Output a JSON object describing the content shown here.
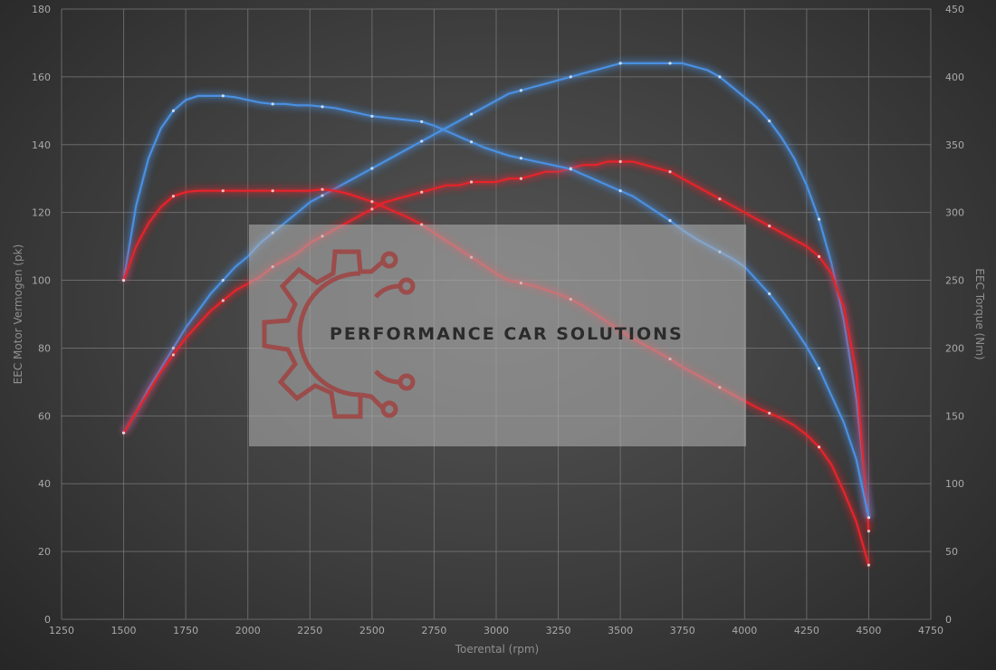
{
  "chart_data": {
    "type": "line",
    "xlabel": "Toerental (rpm)",
    "ylabel_left": "EEC Motor Vermogen (pk)",
    "ylabel_right": "EEC Torque (Nm)",
    "xlim": [
      1250,
      4750
    ],
    "ylim_left": [
      0,
      180
    ],
    "ylim_right": [
      0,
      450
    ],
    "x_ticks": [
      "1250",
      "1500",
      "1750",
      "2000",
      "2250",
      "2500",
      "2750",
      "3000",
      "3250",
      "3500",
      "3750",
      "4000",
      "4250",
      "4500",
      "4750"
    ],
    "y_left_ticks": [
      "0",
      "20",
      "40",
      "60",
      "80",
      "100",
      "120",
      "140",
      "160",
      "180"
    ],
    "y_right_ticks": [
      "0",
      "50",
      "100",
      "150",
      "200",
      "250",
      "300",
      "350",
      "400",
      "450"
    ],
    "grid": true,
    "watermark": "PERFORMANCE CAR SOLUTIONS",
    "colors": {
      "tuned": "#4a90e2",
      "stock": "#e8232a"
    },
    "series": [
      {
        "id": "power-tuned",
        "axis": "left",
        "color": "#4a90e2",
        "x": [
          1500,
          1550,
          1600,
          1650,
          1700,
          1750,
          1800,
          1850,
          1900,
          1950,
          2000,
          2050,
          2100,
          2150,
          2200,
          2250,
          2300,
          2350,
          2400,
          2450,
          2500,
          2550,
          2600,
          2650,
          2700,
          2750,
          2800,
          2850,
          2900,
          2950,
          3000,
          3050,
          3100,
          3150,
          3200,
          3250,
          3300,
          3350,
          3400,
          3450,
          3500,
          3550,
          3600,
          3650,
          3700,
          3750,
          3800,
          3850,
          3900,
          3950,
          4000,
          4050,
          4100,
          4150,
          4200,
          4250,
          4300,
          4350,
          4400,
          4450,
          4500
        ],
        "y": [
          55,
          61,
          68,
          74,
          80,
          86,
          91,
          96,
          100,
          104,
          107,
          111,
          114,
          117,
          120,
          123,
          125,
          127,
          129,
          131,
          133,
          135,
          137,
          139,
          141,
          143,
          145,
          147,
          149,
          151,
          153,
          155,
          156,
          157,
          158,
          159,
          160,
          161,
          162,
          163,
          164,
          164,
          164,
          164,
          164,
          164,
          163,
          162,
          160,
          157,
          154,
          151,
          147,
          142,
          136,
          128,
          118,
          105,
          88,
          65,
          30
        ]
      },
      {
        "id": "power-stock",
        "axis": "left",
        "color": "#e8232a",
        "x": [
          1500,
          1550,
          1600,
          1650,
          1700,
          1750,
          1800,
          1850,
          1900,
          1950,
          2000,
          2050,
          2100,
          2150,
          2200,
          2250,
          2300,
          2350,
          2400,
          2450,
          2500,
          2550,
          2600,
          2650,
          2700,
          2750,
          2800,
          2850,
          2900,
          2950,
          3000,
          3050,
          3100,
          3150,
          3200,
          3250,
          3300,
          3350,
          3400,
          3450,
          3500,
          3550,
          3600,
          3650,
          3700,
          3750,
          3800,
          3850,
          3900,
          3950,
          4000,
          4050,
          4100,
          4150,
          4200,
          4250,
          4300,
          4350,
          4400,
          4450,
          4500
        ],
        "y": [
          55,
          61,
          67,
          73,
          78,
          83,
          87,
          91,
          94,
          97,
          99,
          101,
          104,
          106,
          108,
          111,
          113,
          115,
          117,
          119,
          121,
          123,
          124,
          125,
          126,
          127,
          128,
          128,
          129,
          129,
          129,
          130,
          130,
          131,
          132,
          132,
          133,
          134,
          134,
          135,
          135,
          135,
          134,
          133,
          132,
          130,
          128,
          126,
          124,
          122,
          120,
          118,
          116,
          114,
          112,
          110,
          107,
          102,
          92,
          73,
          26
        ]
      },
      {
        "id": "torque-tuned",
        "axis": "right",
        "color": "#4a90e2",
        "x": [
          1500,
          1550,
          1600,
          1650,
          1700,
          1750,
          1800,
          1850,
          1900,
          1950,
          2000,
          2050,
          2100,
          2150,
          2200,
          2250,
          2300,
          2350,
          2400,
          2450,
          2500,
          2550,
          2600,
          2650,
          2700,
          2750,
          2800,
          2850,
          2900,
          2950,
          3000,
          3050,
          3100,
          3150,
          3200,
          3250,
          3300,
          3350,
          3400,
          3450,
          3500,
          3550,
          3600,
          3650,
          3700,
          3750,
          3800,
          3850,
          3900,
          3950,
          4000,
          4050,
          4100,
          4150,
          4200,
          4250,
          4300,
          4350,
          4400,
          4450,
          4500
        ],
        "y": [
          250,
          305,
          340,
          362,
          375,
          383,
          386,
          386,
          386,
          385,
          383,
          381,
          380,
          380,
          379,
          379,
          378,
          377,
          375,
          373,
          371,
          370,
          369,
          368,
          367,
          364,
          360,
          356,
          352,
          348,
          345,
          342,
          340,
          338,
          336,
          334,
          332,
          328,
          324,
          320,
          316,
          312,
          306,
          300,
          294,
          287,
          281,
          276,
          271,
          266,
          260,
          250,
          240,
          228,
          215,
          201,
          185,
          165,
          145,
          118,
          75
        ]
      },
      {
        "id": "torque-stock",
        "axis": "right",
        "color": "#e8232a",
        "x": [
          1500,
          1550,
          1600,
          1650,
          1700,
          1750,
          1800,
          1850,
          1900,
          1950,
          2000,
          2050,
          2100,
          2150,
          2200,
          2250,
          2300,
          2350,
          2400,
          2450,
          2500,
          2550,
          2600,
          2650,
          2700,
          2750,
          2800,
          2850,
          2900,
          2950,
          3000,
          3050,
          3100,
          3150,
          3200,
          3250,
          3300,
          3350,
          3400,
          3450,
          3500,
          3550,
          3600,
          3650,
          3700,
          3750,
          3800,
          3850,
          3900,
          3950,
          4000,
          4050,
          4100,
          4150,
          4200,
          4250,
          4300,
          4350,
          4400,
          4450,
          4500
        ],
        "y": [
          250,
          275,
          292,
          304,
          312,
          315,
          316,
          316,
          316,
          316,
          316,
          316,
          316,
          316,
          316,
          316,
          317,
          316,
          314,
          311,
          308,
          304,
          300,
          296,
          291,
          285,
          279,
          273,
          267,
          261,
          255,
          250,
          248,
          246,
          243,
          240,
          236,
          231,
          225,
          219,
          213,
          207,
          202,
          197,
          192,
          186,
          181,
          176,
          171,
          166,
          161,
          156,
          152,
          148,
          143,
          136,
          127,
          114,
          94,
          72,
          40
        ]
      }
    ]
  }
}
